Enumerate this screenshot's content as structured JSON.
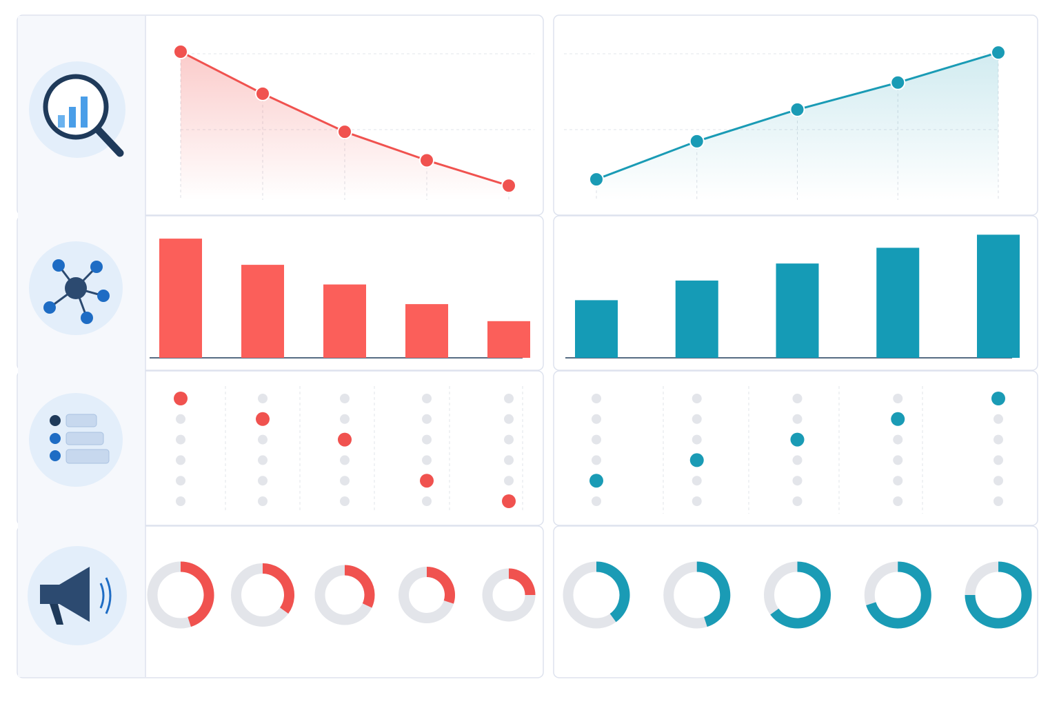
{
  "chart_data": [
    {
      "type": "line",
      "values": [
        93.5,
        67,
        43,
        25,
        9
      ],
      "color": "#f0524f",
      "ylim": [
        0,
        100
      ]
    },
    {
      "type": "line",
      "values": [
        13,
        37,
        57,
        74,
        93
      ],
      "color": "#1a9bb5",
      "ylim": [
        0,
        100
      ]
    },
    {
      "type": "bar",
      "values": [
        91,
        71,
        56,
        41,
        28
      ],
      "color": "#fb5f5a",
      "ylim": [
        0,
        100
      ]
    },
    {
      "type": "bar",
      "values": [
        44,
        59,
        72,
        84,
        94
      ],
      "color": "#159bb6",
      "ylim": [
        0,
        100
      ]
    },
    {
      "type": "dot",
      "values": [
        5,
        4,
        3,
        1,
        0
      ],
      "color": "#f0524f",
      "ylim": [
        0,
        5
      ]
    },
    {
      "type": "dot",
      "values": [
        1,
        2,
        3,
        4,
        5
      ],
      "color": "#1a9bb5",
      "ylim": [
        0,
        5
      ]
    },
    {
      "type": "donut",
      "values": [
        45,
        35,
        32,
        30,
        25
      ],
      "color": "#f0524f"
    },
    {
      "type": "donut",
      "values": [
        40,
        45,
        65,
        70,
        75
      ],
      "color": "#1a9bb5"
    }
  ]
}
